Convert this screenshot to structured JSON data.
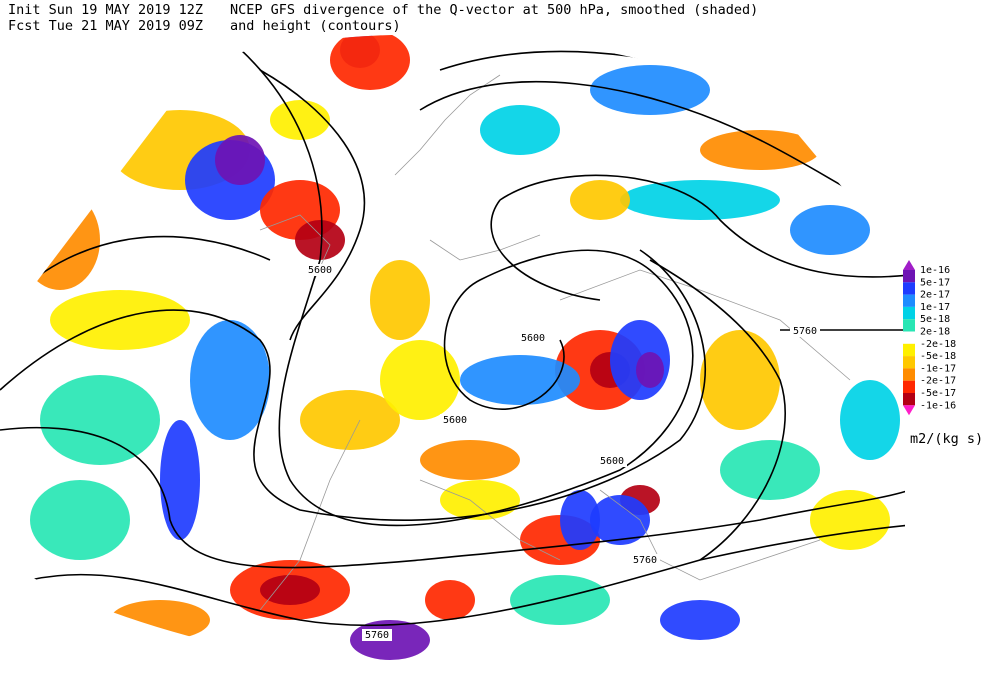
{
  "header": {
    "init": "Init  Sun 19 MAY 2019 12Z",
    "forecast": "Fcst Tue 21 MAY 2019 09Z",
    "title": "NCEP GFS divergence of the Q-vector at 500 hPa, smoothed (shaded)",
    "subtitle": "and height (contours)"
  },
  "contour_labels": [
    "5600",
    "5600",
    "5600",
    "5600",
    "5760",
    "5760",
    "5760"
  ],
  "legend": {
    "labels": [
      "1e-16",
      "5e-17",
      "2e-17",
      "1e-17",
      "5e-18",
      "2e-18",
      "-2e-18",
      "-5e-18",
      "-1e-17",
      "-2e-17",
      "-5e-17",
      "-1e-16"
    ],
    "colors": [
      "#a01ec8",
      "#6e14b4",
      "#1e3cff",
      "#1e8cff",
      "#00d2e6",
      "#28e6b4",
      "#ffffff",
      "#fff000",
      "#ffc800",
      "#ff8c00",
      "#ff2800",
      "#b40014",
      "#ff1ec8"
    ],
    "unit": "m2/(kg s)"
  }
}
